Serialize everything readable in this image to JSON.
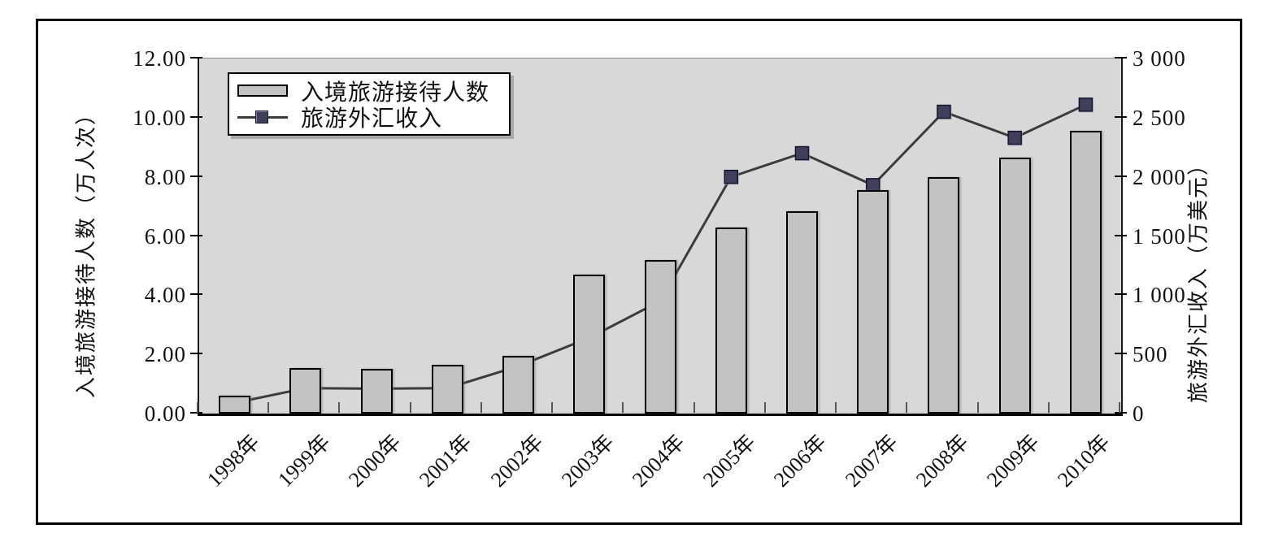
{
  "chart_data": {
    "type": "combo-bar-line",
    "categories": [
      "1998年",
      "1999年",
      "2000年",
      "2001年",
      "2002年",
      "2003年",
      "2004年",
      "2005年",
      "2006年",
      "2007年",
      "2008年",
      "2009年",
      "2010年"
    ],
    "series": [
      {
        "name": "入境旅游接待人数",
        "type": "bar",
        "axis": "left",
        "values": [
          0.6,
          1.55,
          1.5,
          1.65,
          1.95,
          4.7,
          5.2,
          6.3,
          6.85,
          7.55,
          8.0,
          8.65,
          9.55
        ]
      },
      {
        "name": "旅游外汇收入",
        "type": "line",
        "axis": "right",
        "values": [
          90,
          215,
          210,
          215,
          400,
          640,
          950,
          2000,
          2200,
          1930,
          2550,
          2330,
          2610
        ]
      }
    ],
    "left_axis": {
      "title": "入境旅游接待人数（万人次）",
      "min": 0,
      "max": 12,
      "tick_labels": [
        "0.00",
        "2.00",
        "4.00",
        "6.00",
        "8.00",
        "10.00",
        "12.00"
      ]
    },
    "right_axis": {
      "title": "旅游外汇收入（万美元）",
      "min": 0,
      "max": 3000,
      "tick_labels": [
        "0",
        "500",
        "1 000",
        "1 500",
        "2 000",
        "2 500",
        "3 000"
      ]
    },
    "legend": {
      "position": "top-left-inside"
    },
    "grid": "off",
    "colors": {
      "plot_bg": "#d8d8d8",
      "bar_fill": "#c3c3c3",
      "bar_border": "#000000",
      "line": "#3c3c3c",
      "marker_fill": "#3f3f5c",
      "marker_border": "#16162b"
    }
  }
}
